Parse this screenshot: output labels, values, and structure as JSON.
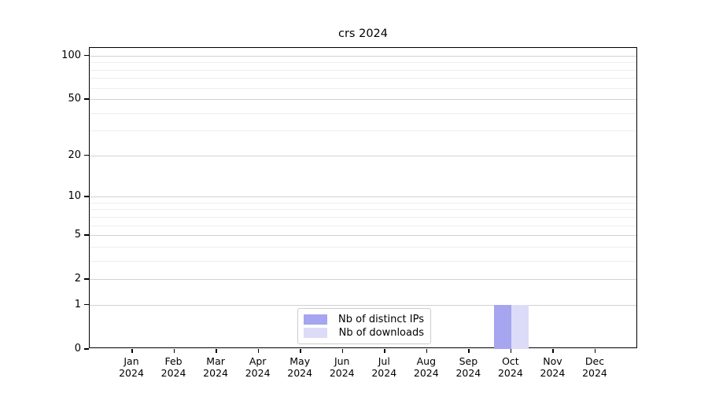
{
  "title": "crs 2024",
  "colors": {
    "distinct_ips": "#a5a5f0",
    "downloads": "#dcdcf8",
    "grid_major": "#d2d2d2",
    "grid_minor": "#ededed",
    "axis": "#000000",
    "legend_border": "#cccccc"
  },
  "legend": {
    "items": [
      {
        "label": "Nb of distinct IPs",
        "series_key": "distinct_ips"
      },
      {
        "label": "Nb of downloads",
        "series_key": "downloads"
      }
    ]
  },
  "y_axis": {
    "major_ticks": [
      100,
      50,
      20,
      10,
      5,
      2,
      1,
      0
    ],
    "major_gridlines": [
      1,
      2,
      5,
      10,
      20,
      50,
      100
    ],
    "minor_gridlines": [
      3,
      4,
      6,
      7,
      8,
      9,
      30,
      40,
      60,
      70,
      80,
      90
    ],
    "max_value": 113.3,
    "scale": "log1p"
  },
  "x_axis": {
    "months": [
      "Jan",
      "Feb",
      "Mar",
      "Apr",
      "May",
      "Jun",
      "Jul",
      "Aug",
      "Sep",
      "Oct",
      "Nov",
      "Dec"
    ],
    "year": "2024"
  },
  "chart_data": {
    "type": "bar",
    "title": "crs 2024",
    "categories": [
      "Jan 2024",
      "Feb 2024",
      "Mar 2024",
      "Apr 2024",
      "May 2024",
      "Jun 2024",
      "Jul 2024",
      "Aug 2024",
      "Sep 2024",
      "Oct 2024",
      "Nov 2024",
      "Dec 2024"
    ],
    "series": [
      {
        "name": "Nb of distinct IPs",
        "key": "distinct_ips",
        "values": [
          0,
          0,
          0,
          0,
          0,
          0,
          0,
          0,
          0,
          1,
          0,
          0
        ]
      },
      {
        "name": "Nb of downloads",
        "key": "downloads",
        "values": [
          0,
          0,
          0,
          0,
          0,
          0,
          0,
          0,
          0,
          1,
          0,
          0
        ]
      }
    ],
    "yscale": "log1p",
    "ylim": [
      0,
      113.3
    ],
    "y_tick_values": [
      0,
      1,
      2,
      5,
      10,
      20,
      50,
      100
    ],
    "grid": true,
    "legend_position": "lower center"
  }
}
